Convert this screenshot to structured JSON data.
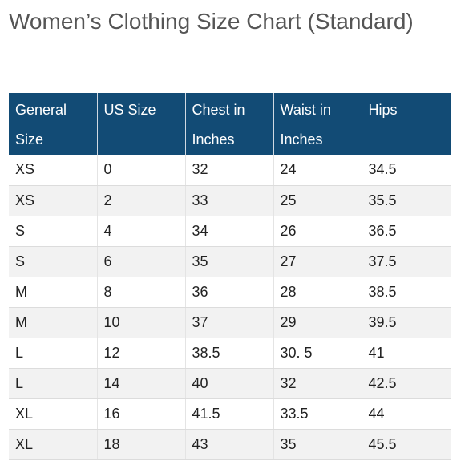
{
  "title": "Women’s Clothing Size Chart (Standard)",
  "colors": {
    "header_bg": "#124b75",
    "header_text": "#ffffff",
    "title_text": "#555555",
    "row_alt_bg": "#f2f2f2"
  },
  "table": {
    "headers": [
      "General Size",
      "US Size",
      "Chest in Inches",
      "Waist in Inches",
      "Hips"
    ],
    "rows": [
      [
        "XS",
        "0",
        "32",
        "24",
        "34.5"
      ],
      [
        "XS",
        "2",
        "33",
        "25",
        "35.5"
      ],
      [
        "S",
        "4",
        "34",
        "26",
        "36.5"
      ],
      [
        "S",
        "6",
        "35",
        "27",
        "37.5"
      ],
      [
        "M",
        "8",
        "36",
        "28",
        "38.5"
      ],
      [
        "M",
        "10",
        "37",
        "29",
        "39.5"
      ],
      [
        "L",
        "12",
        "38.5",
        "30. 5",
        "41"
      ],
      [
        "L",
        "14",
        "40",
        "32",
        "42.5"
      ],
      [
        "XL",
        "16",
        "41.5",
        "33.5",
        "44"
      ],
      [
        "XL",
        "18",
        "43",
        "35",
        "45.5"
      ]
    ]
  }
}
